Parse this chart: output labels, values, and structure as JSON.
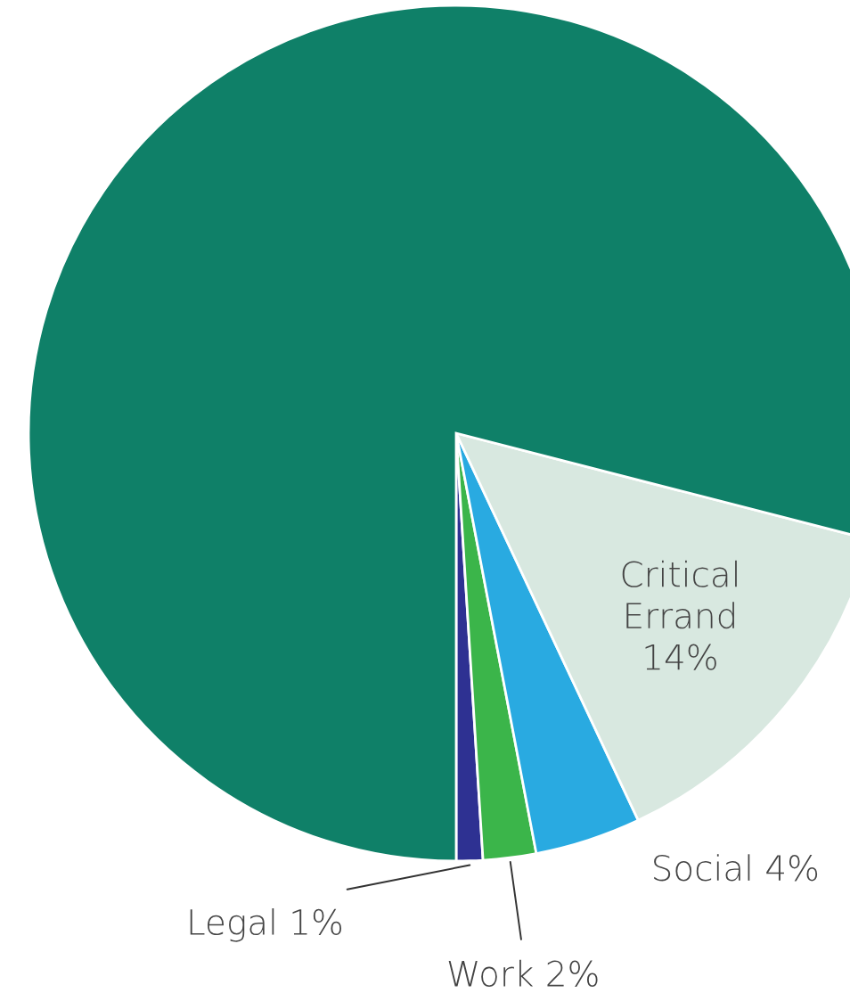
{
  "chart_data": {
    "type": "pie",
    "categories": [
      "Legal",
      "Work",
      "Social",
      "Critical Errand",
      null
    ],
    "values": [
      1,
      2,
      4,
      14,
      79
    ],
    "value_labels": [
      "1%",
      "2%",
      "4%",
      "14%",
      null
    ],
    "colors": [
      "#2e3192",
      "#3bb54a",
      "#29aae1",
      "#d8e8e0",
      "#0f8068"
    ]
  }
}
